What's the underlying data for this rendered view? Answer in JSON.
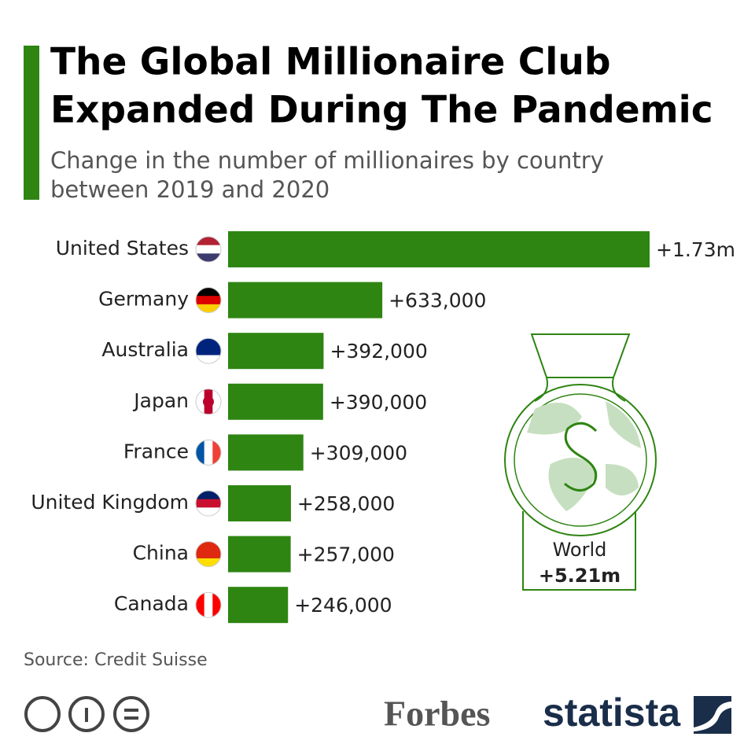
{
  "chart_data": {
    "type": "hbar",
    "title": [
      "The Global Millionaire Club",
      "Expanded During The Pandemic"
    ],
    "subtitle": [
      "Change in the number of millionaires by country",
      "between 2019 and 2020"
    ],
    "categories": [
      "United States",
      "Germany",
      "Australia",
      "Japan",
      "France",
      "United Kingdom",
      "China",
      "Canada"
    ],
    "values": [
      1730000,
      633000,
      392000,
      390000,
      309000,
      258000,
      257000,
      246000
    ],
    "value_labels": [
      "+1.73m",
      "+633,000",
      "+392,000",
      "+390,000",
      "+309,000",
      "+258,000",
      "+257,000",
      "+246,000"
    ],
    "color": "#2e8512",
    "annotation": {
      "label": "World",
      "value_label": "+5.21m"
    },
    "source": "Source: Credit Suisse",
    "logos": [
      "Forbes",
      "statista"
    ]
  }
}
